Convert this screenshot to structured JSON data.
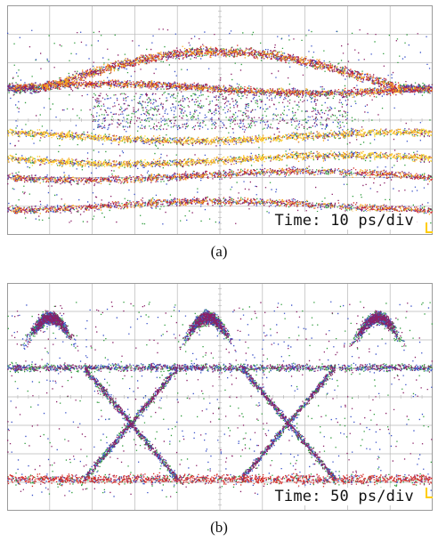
{
  "chart_data": [
    {
      "type": "scatter",
      "panel": "a",
      "caption": "(a)",
      "timebase": "Time: 10 ps/div",
      "grid": true,
      "grid_divisions": {
        "x": 10,
        "y": 8
      },
      "colors": [
        "#2f9c3c",
        "#3850c8",
        "#8a1f66",
        "#d8302a",
        "#f5a51c",
        "#ffd830"
      ],
      "bands": [
        {
          "kind": "dome",
          "peak": 0.2,
          "edge": 0.36,
          "from": 0.3,
          "to": 0.78
        },
        {
          "kind": "rail",
          "level": 0.36
        },
        {
          "kind": "rail",
          "level": 0.57
        },
        {
          "kind": "rail",
          "level": 0.67
        },
        {
          "kind": "rail",
          "level": 0.74
        },
        {
          "kind": "rail",
          "level": 0.87
        }
      ]
    },
    {
      "type": "scatter",
      "panel": "b",
      "caption": "(b)",
      "timebase": "Time: 50 ps/div",
      "grid": true,
      "grid_divisions": {
        "x": 10,
        "y": 8
      },
      "colors": [
        "#2f9c3c",
        "#3850c8",
        "#8a1f66",
        "#d8302a"
      ],
      "bands": [
        {
          "kind": "rail",
          "level": 0.37
        },
        {
          "kind": "rail",
          "level": 0.86
        },
        {
          "kind": "bump",
          "center": 0.1,
          "peak": 0.15
        },
        {
          "kind": "bump",
          "center": 0.47,
          "peak": 0.15
        },
        {
          "kind": "bump",
          "center": 0.87,
          "peak": 0.15
        },
        {
          "kind": "crossing",
          "center": 0.29
        },
        {
          "kind": "crossing",
          "center": 0.66
        }
      ]
    }
  ]
}
